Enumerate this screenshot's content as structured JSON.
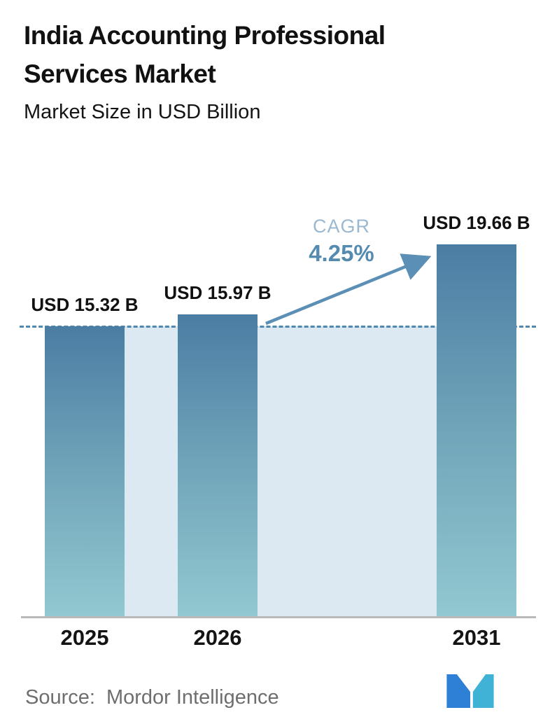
{
  "header": {
    "title": "India Accounting Professional Services Market",
    "subtitle": "Market Size in USD Billion"
  },
  "chart_data": {
    "type": "bar",
    "title": "India Accounting Professional Services Market",
    "subtitle": "Market Size in USD Billion",
    "categories": [
      "2025",
      "2026",
      "2031"
    ],
    "values": [
      15.32,
      15.97,
      19.66
    ],
    "bar_labels": [
      "USD 15.32 B",
      "USD 15.97 B",
      "USD 19.66 B"
    ],
    "unit": "USD Billion",
    "cagr_label": "CAGR",
    "cagr_value": "4.25%",
    "ylim": [
      0,
      22
    ],
    "dashed_line_at": 15.32,
    "grid": false,
    "legend": false,
    "colors": {
      "bar_top": "#4b7da4",
      "bar_bottom": "#92c8d1",
      "band": "#dce8f2",
      "dashed_line": "#4f89af",
      "arrow": "#5b8fb5",
      "cagr_label": "#9ab9d0",
      "cagr_value": "#568bb0",
      "axis": "#b9b9b9",
      "text": "#111111",
      "source_text": "#6e6e6e"
    }
  },
  "footer": {
    "source_label": "Source:",
    "source_value": "Mordor Intelligence"
  }
}
